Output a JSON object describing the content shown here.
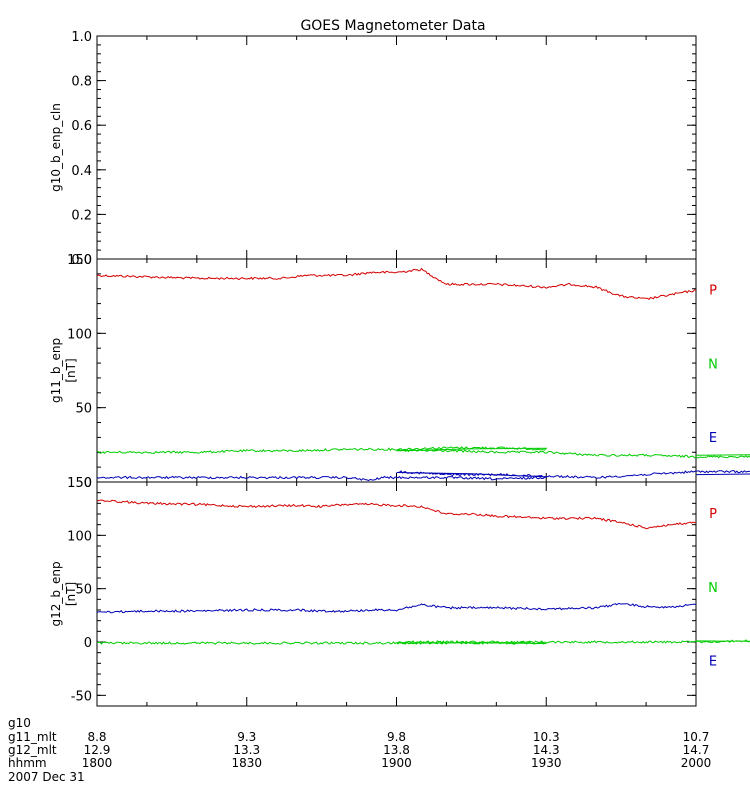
{
  "title": "GOES Magnetometer Data",
  "colors": {
    "P": "#d40000",
    "N": "#00cc00",
    "E": "#0000b4",
    "axis": "#000000"
  },
  "chart_data": [
    {
      "type": "line",
      "ylabel": "g10_b_enp_cln",
      "unit": "",
      "ylim": [
        0,
        1
      ],
      "yticks": [
        "0.0",
        "0.2",
        "0.4",
        "0.6",
        "0.8",
        "1.0"
      ],
      "ytick_values": [
        0,
        0.2,
        0.4,
        0.6,
        0.8,
        1.0
      ],
      "series": []
    },
    {
      "type": "line",
      "ylabel": "g11_b_enp",
      "unit": "[nT]",
      "ylim": [
        0,
        150
      ],
      "yticks": [
        "0",
        "50",
        "100",
        "150"
      ],
      "ytick_values": [
        0,
        50,
        100,
        150
      ],
      "series": [
        {
          "name": "P",
          "color": "#d40000",
          "x": [
            1800,
            1810,
            1820,
            1830,
            1837,
            1842,
            1850,
            1855,
            1900,
            1905,
            1910,
            1920,
            1930,
            1935,
            1940,
            1945,
            1950,
            1955,
            2000
          ],
          "y": [
            139,
            138,
            137,
            137,
            137,
            139,
            139,
            141,
            141,
            143,
            133,
            133,
            131,
            133,
            131,
            125,
            123,
            126,
            129
          ]
        },
        {
          "name": "N",
          "color": "#00cc00",
          "x": [
            1800,
            1810,
            1820,
            1830,
            1840,
            1850,
            1860,
            1870,
            1880,
            1890,
            1900,
            1910,
            1920,
            1930,
            1940,
            1950,
            1960,
            1970,
            1980,
            1990,
            2000
          ],
          "y": [
            20,
            20,
            20,
            21,
            21,
            22,
            22,
            23,
            23,
            22,
            21,
            21,
            20,
            20,
            18,
            18,
            17,
            17,
            18,
            18,
            18
          ]
        },
        {
          "name": "E",
          "color": "#0000b4",
          "x": [
            1800,
            1810,
            1820,
            1830,
            1840,
            1850,
            1855,
            1857,
            1860,
            1870,
            1880,
            1890,
            1900,
            1910,
            1920,
            1930,
            1940,
            1950,
            1960,
            1970,
            1980,
            1990,
            2000
          ],
          "y": [
            3,
            3,
            3,
            3,
            3,
            3,
            1,
            3,
            3,
            3,
            2,
            3,
            7,
            5,
            5,
            4,
            3,
            5,
            7,
            7,
            6,
            5,
            5
          ]
        }
      ]
    },
    {
      "type": "line",
      "ylabel": "g12_b_enp",
      "unit": "[nT]",
      "ylim": [
        -60,
        150
      ],
      "yticks": [
        "-50",
        "0",
        "50",
        "100",
        "150"
      ],
      "ytick_values": [
        -50,
        0,
        50,
        100,
        150
      ],
      "series": [
        {
          "name": "P",
          "color": "#d40000",
          "x": [
            1800,
            1810,
            1820,
            1830,
            1840,
            1845,
            1850,
            1855,
            1900,
            1905,
            1910,
            1915,
            1920,
            1930,
            1940,
            1945,
            1950,
            1955,
            2000
          ],
          "y": [
            133,
            130,
            129,
            127,
            128,
            127,
            129,
            129,
            128,
            127,
            120,
            120,
            118,
            116,
            116,
            112,
            107,
            110,
            112
          ]
        },
        {
          "name": "N",
          "color": "#00cc00",
          "x": [
            1800,
            1810,
            1820,
            1830,
            1840,
            1850,
            1860,
            1870,
            1880,
            1890,
            1900,
            1910,
            1920,
            1930,
            1940,
            1950,
            1960,
            1970,
            1980,
            1990,
            2000
          ],
          "y": [
            -1,
            -1,
            -1,
            -1,
            -1,
            -1,
            -1,
            -1,
            -1,
            -1,
            0,
            0,
            0,
            0,
            0,
            0,
            0,
            1,
            2,
            1,
            1
          ]
        },
        {
          "name": "E",
          "color": "#0000b4",
          "x": [
            1800,
            1810,
            1820,
            1830,
            1840,
            1845,
            1850,
            1855,
            1900,
            1905,
            1910,
            1920,
            1930,
            1940,
            1945,
            1950,
            1955,
            2000
          ],
          "y": [
            28,
            29,
            29,
            30,
            30,
            29,
            29,
            30,
            30,
            35,
            32,
            32,
            31,
            32,
            36,
            33,
            33,
            35
          ]
        }
      ]
    }
  ],
  "side_labels": [
    {
      "panel": 1,
      "items": [
        "P",
        "N",
        "E"
      ]
    },
    {
      "panel": 2,
      "items": [
        "P",
        "N",
        "E"
      ]
    }
  ],
  "x_axis": {
    "min": 1800,
    "max": 2000,
    "ticks": [
      1800,
      1830,
      1900,
      1930,
      2000
    ],
    "rows": [
      {
        "label": "g10",
        "values": [
          "",
          "",
          "",
          "",
          ""
        ]
      },
      {
        "label": "g11_mlt",
        "values": [
          "8.8",
          "9.3",
          "9.8",
          "10.3",
          "10.7"
        ]
      },
      {
        "label": "g12_mlt",
        "values": [
          "12.9",
          "13.3",
          "13.8",
          "14.3",
          "14.7"
        ]
      },
      {
        "label": "hhmm",
        "values": [
          "1800",
          "1830",
          "1900",
          "1930",
          "2000"
        ]
      }
    ],
    "date": "2007 Dec 31"
  }
}
